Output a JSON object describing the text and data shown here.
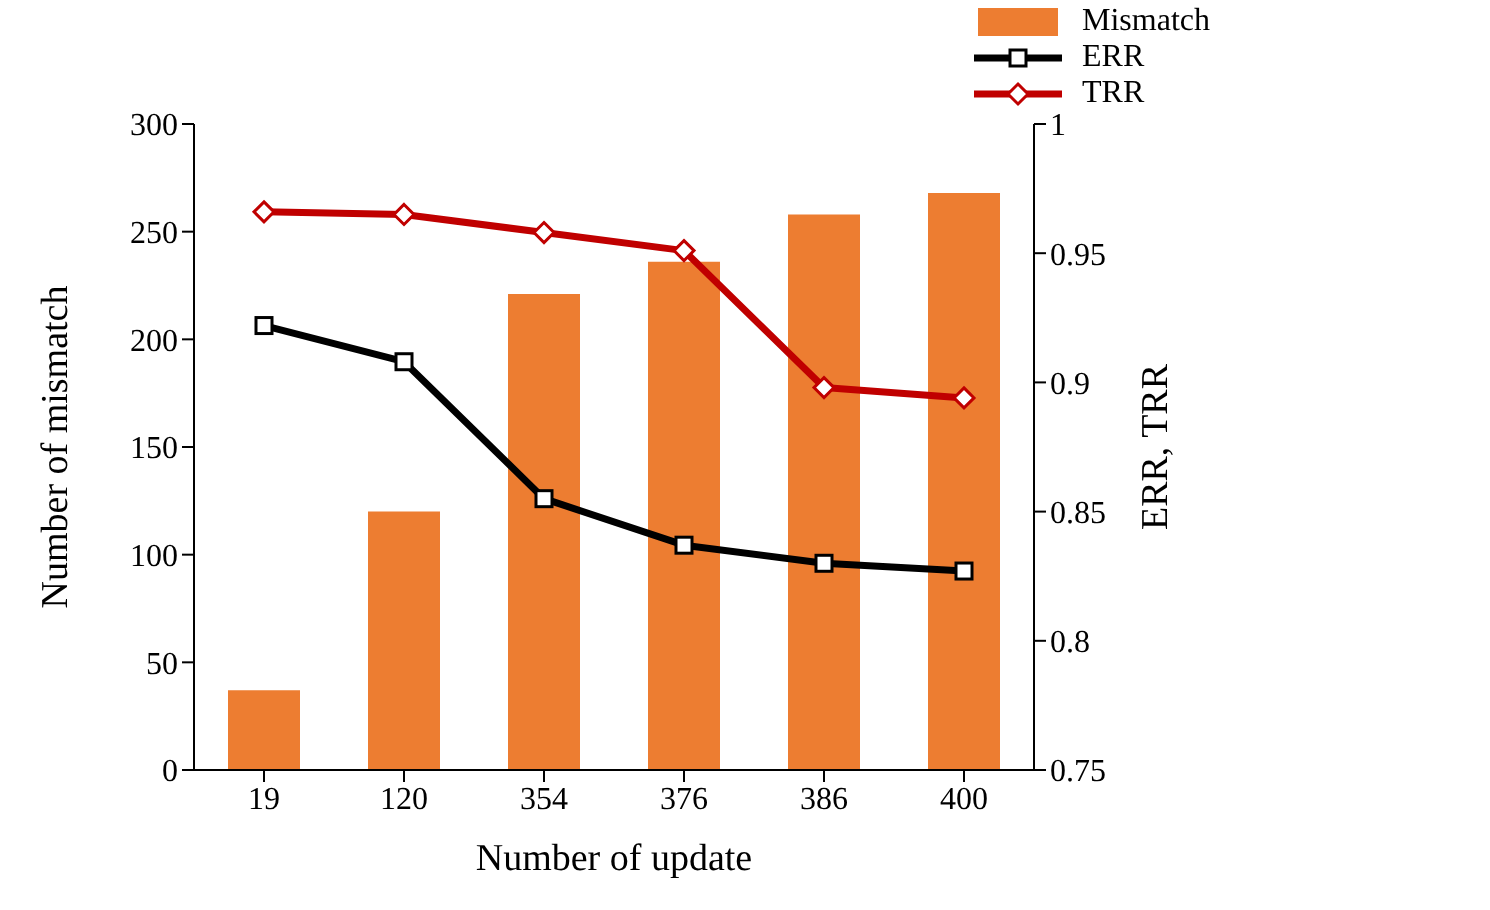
{
  "chart_data": {
    "type": "bar",
    "xlabel": "Number of update",
    "ylabel": "Number of mismatch",
    "y2label": "ERR, TRR",
    "categories": [
      "19",
      "120",
      "354",
      "376",
      "386",
      "400"
    ],
    "series": [
      {
        "name": "Mismatch",
        "color": "#ed7d31",
        "values": [
          37,
          120,
          221,
          236,
          258,
          268
        ]
      },
      {
        "name": "ERR",
        "type": "line",
        "axis": "y2",
        "color": "#000000",
        "marker": "square",
        "values": [
          0.922,
          0.908,
          0.855,
          0.837,
          0.83,
          0.827
        ]
      },
      {
        "name": "TRR",
        "type": "line",
        "axis": "y2",
        "color": "#c00000",
        "marker": "diamond",
        "values": [
          0.966,
          0.965,
          0.958,
          0.951,
          0.898,
          0.894
        ]
      }
    ],
    "ylim": [
      0,
      300
    ],
    "yticks": [
      0,
      50,
      100,
      150,
      200,
      250,
      300
    ],
    "y2lim": [
      0.75,
      1
    ],
    "y2ticks": [
      0.75,
      0.8,
      0.85,
      0.9,
      0.95,
      1
    ],
    "grid": false,
    "legend": "top right"
  }
}
